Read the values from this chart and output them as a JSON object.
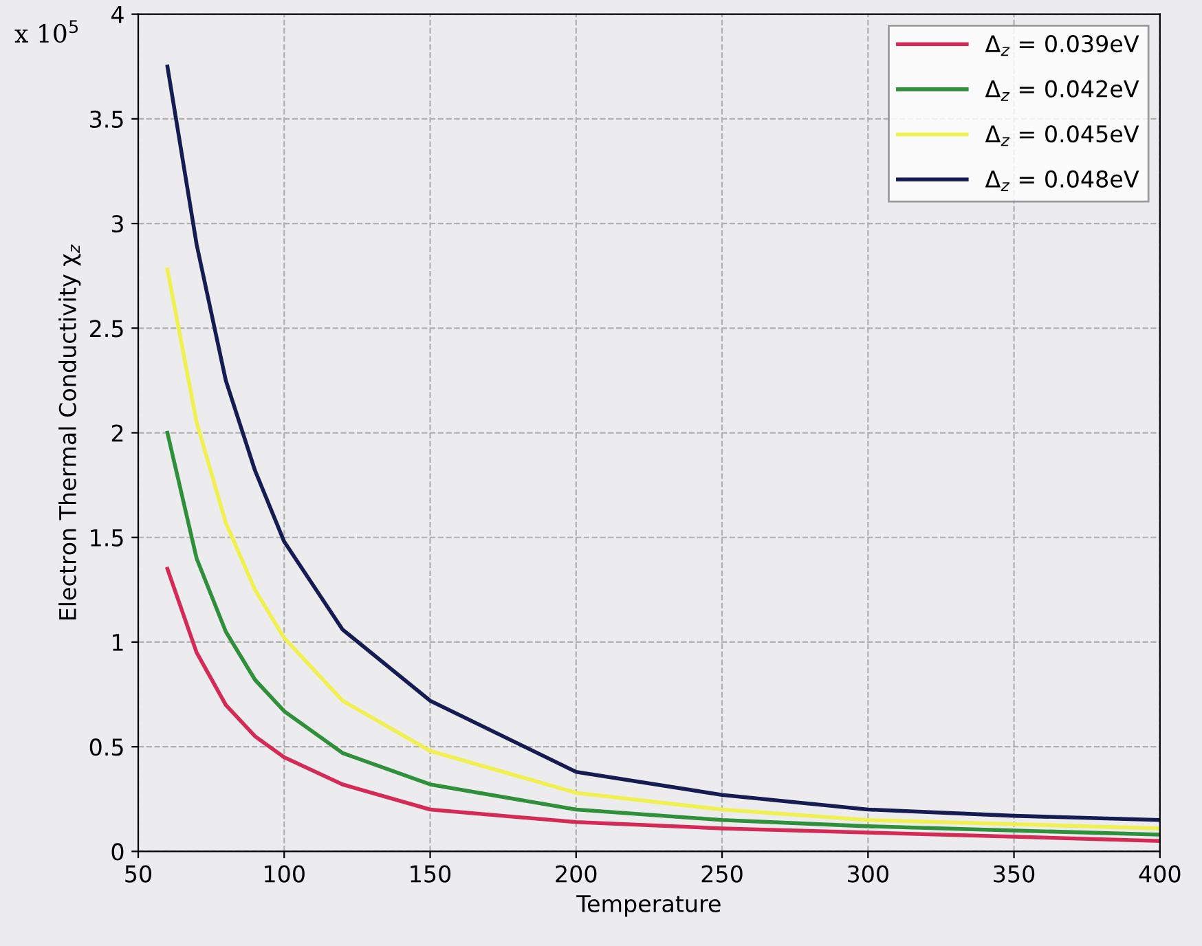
{
  "chart_data": {
    "type": "line",
    "xlabel": "Temperature",
    "ylabel": "Electron Thermal Conductivity χ$_{z}$",
    "annotations": [
      "x 10$^{5}$"
    ],
    "x": [
      60,
      70,
      80,
      90,
      100,
      120,
      150,
      200,
      250,
      300,
      350,
      400
    ],
    "series": [
      {
        "name": "Δ$_{z}$ = 0.039eV",
        "color": "#d42a55",
        "values": [
          1.35,
          0.95,
          0.7,
          0.55,
          0.45,
          0.32,
          0.2,
          0.14,
          0.11,
          0.09,
          0.07,
          0.05
        ]
      },
      {
        "name": "Δ$_{z}$ = 0.042eV",
        "color": "#2f8f3a",
        "values": [
          2.0,
          1.4,
          1.05,
          0.82,
          0.67,
          0.47,
          0.32,
          0.2,
          0.15,
          0.12,
          0.1,
          0.08
        ]
      },
      {
        "name": "Δ$_{z}$ = 0.045eV",
        "color": "#f0f050",
        "values": [
          2.78,
          2.05,
          1.57,
          1.25,
          1.02,
          0.72,
          0.48,
          0.28,
          0.2,
          0.15,
          0.13,
          0.11
        ]
      },
      {
        "name": "Δ$_{z}$ = 0.048eV",
        "color": "#141c52",
        "values": [
          3.75,
          2.9,
          2.25,
          1.82,
          1.48,
          1.06,
          0.72,
          0.38,
          0.27,
          0.2,
          0.17,
          0.15
        ]
      }
    ],
    "xlim": [
      50,
      400
    ],
    "xticks": [
      50,
      100,
      150,
      200,
      250,
      300,
      350,
      400
    ],
    "ylim": [
      0,
      4
    ],
    "yticks": [
      0,
      0.5,
      1,
      1.5,
      2,
      2.5,
      3,
      3.5,
      4
    ],
    "grid": true,
    "legend": "top right",
    "line_style": "solid",
    "marker": "none"
  }
}
